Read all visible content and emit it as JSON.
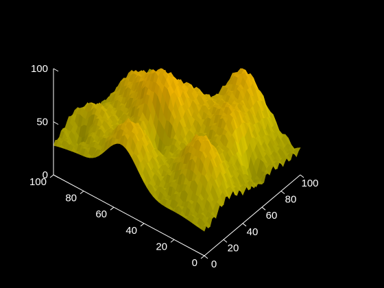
{
  "chart_data": {
    "type": "surface",
    "title": "",
    "xlabel": "",
    "ylabel": "",
    "zlabel": "",
    "grid": false,
    "background": "#000000",
    "axis_color": "#ffffff",
    "xlim": [
      0,
      100
    ],
    "ylim": [
      0,
      100
    ],
    "zlim": [
      0,
      100
    ],
    "x_ticks": [
      "0",
      "20",
      "40",
      "60",
      "80",
      "100"
    ],
    "y_ticks": [
      "0",
      "20",
      "40",
      "60",
      "80",
      "100"
    ],
    "z_ticks": [
      "0",
      "50",
      "100"
    ],
    "colors": {
      "low": "#060a78",
      "base": "#9a9a00",
      "mid": "#c8b800",
      "high": "#f5b800"
    },
    "surface": {
      "x_count": 101,
      "y_count": 101,
      "z_range": [
        0,
        100
      ],
      "peaks": [
        {
          "x": 88,
          "y": 30,
          "z": 82
        },
        {
          "x": 40,
          "y": 55,
          "z": 88
        },
        {
          "x": 25,
          "y": 18,
          "z": 78
        },
        {
          "x": 8,
          "y": 55,
          "z": 75
        },
        {
          "x": 60,
          "y": 20,
          "z": 72
        },
        {
          "x": 50,
          "y": 78,
          "z": 70
        },
        {
          "x": 62,
          "y": 48,
          "z": 65
        },
        {
          "x": 18,
          "y": 88,
          "z": 62
        }
      ],
      "valleys": [
        {
          "x": 98,
          "y": 58,
          "z": 0
        },
        {
          "x": 60,
          "y": 8,
          "z": 0
        },
        {
          "x": 88,
          "y": 90,
          "z": 0
        },
        {
          "x": 12,
          "y": 90,
          "z": 0
        },
        {
          "x": 30,
          "y": 50,
          "z": 8
        }
      ]
    }
  }
}
